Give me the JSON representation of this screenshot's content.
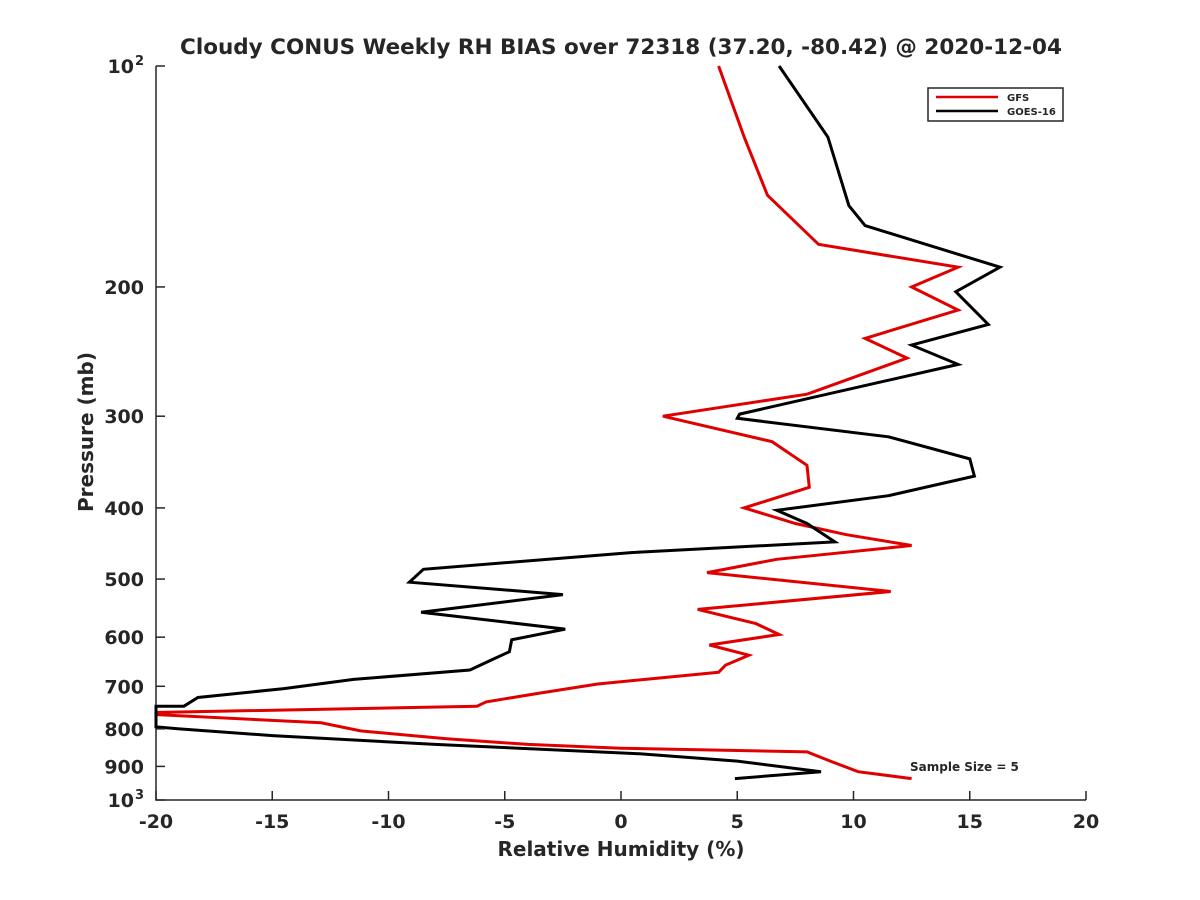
{
  "chart_data": {
    "type": "line",
    "title": "Cloudy CONUS Weekly RH BIAS over 72318 (37.20, -80.42) @ 2020-12-04",
    "xlabel": "Relative Humidity (%)",
    "ylabel": "Pressure (mb)",
    "xlim": [
      -20,
      20
    ],
    "ylim": [
      1000,
      100
    ],
    "yscale": "log",
    "x_ticks": [
      -20,
      -15,
      -10,
      -5,
      0,
      5,
      10,
      15,
      20
    ],
    "y_ticks": [
      {
        "value": 100,
        "label": "10",
        "sup": "2"
      },
      {
        "value": 200,
        "label": "200"
      },
      {
        "value": 300,
        "label": "300"
      },
      {
        "value": 400,
        "label": "400"
      },
      {
        "value": 500,
        "label": "500"
      },
      {
        "value": 600,
        "label": "600"
      },
      {
        "value": 700,
        "label": "700"
      },
      {
        "value": 800,
        "label": "800"
      },
      {
        "value": 900,
        "label": "900"
      },
      {
        "value": 1000,
        "label": "10",
        "sup": "3"
      }
    ],
    "legend_position": "top-right",
    "annotation": "Sample Size = 5",
    "series": [
      {
        "name": "GFS",
        "color": "#e00000",
        "points": [
          [
            4.2,
            100
          ],
          [
            5.3,
            125
          ],
          [
            6.3,
            150
          ],
          [
            8.5,
            175
          ],
          [
            14.5,
            188
          ],
          [
            12.5,
            200
          ],
          [
            14.5,
            215
          ],
          [
            10.5,
            235
          ],
          [
            12.3,
            250
          ],
          [
            8,
            280
          ],
          [
            1.8,
            300
          ],
          [
            6.5,
            325
          ],
          [
            8,
            350
          ],
          [
            8.1,
            375
          ],
          [
            5.3,
            400
          ],
          [
            7.5,
            420
          ],
          [
            9.7,
            435
          ],
          [
            12.5,
            450
          ],
          [
            6.7,
            470
          ],
          [
            3.7,
            490
          ],
          [
            11.6,
            520
          ],
          [
            3.3,
            550
          ],
          [
            5.8,
            575
          ],
          [
            6.8,
            595
          ],
          [
            3.8,
            615
          ],
          [
            5.5,
            635
          ],
          [
            4.5,
            655
          ],
          [
            4.2,
            670
          ],
          [
            -1.0,
            695
          ],
          [
            -3.5,
            715
          ],
          [
            -5.8,
            735
          ],
          [
            -6.2,
            745
          ],
          [
            -20,
            760
          ],
          [
            -20,
            765
          ],
          [
            -12.9,
            785
          ],
          [
            -11.2,
            805
          ],
          [
            -7.5,
            825
          ],
          [
            -4.0,
            840
          ],
          [
            0,
            850
          ],
          [
            8,
            860
          ],
          [
            9,
            885
          ],
          [
            10.2,
            915
          ],
          [
            12.5,
            935
          ]
        ]
      },
      {
        "name": "GOES-16",
        "color": "#000000",
        "points": [
          [
            6.8,
            100
          ],
          [
            8.9,
            125
          ],
          [
            9.8,
            155
          ],
          [
            10.5,
            165
          ],
          [
            16.3,
            188
          ],
          [
            14.4,
            203
          ],
          [
            15.8,
            225
          ],
          [
            12.5,
            240
          ],
          [
            14.5,
            255
          ],
          [
            5.1,
            298
          ],
          [
            5.0,
            302
          ],
          [
            11.5,
            320
          ],
          [
            15.0,
            343
          ],
          [
            15.2,
            362
          ],
          [
            11.5,
            385
          ],
          [
            6.7,
            403
          ],
          [
            8,
            420
          ],
          [
            9.2,
            445
          ],
          [
            0.5,
            460
          ],
          [
            -8.5,
            485
          ],
          [
            -9.1,
            505
          ],
          [
            -2.5,
            525
          ],
          [
            -8.6,
            555
          ],
          [
            -2.4,
            585
          ],
          [
            -4.7,
            605
          ],
          [
            -4.8,
            628
          ],
          [
            -5.6,
            645
          ],
          [
            -6.5,
            665
          ],
          [
            -11.5,
            685
          ],
          [
            -14.5,
            705
          ],
          [
            -18.2,
            725
          ],
          [
            -18.8,
            745
          ],
          [
            -20,
            745
          ],
          [
            -20,
            795
          ],
          [
            -19,
            800
          ],
          [
            -15,
            817
          ],
          [
            -8,
            840
          ],
          [
            0.8,
            865
          ],
          [
            5,
            885
          ],
          [
            8.6,
            915
          ],
          [
            4.9,
            935
          ]
        ]
      }
    ]
  }
}
